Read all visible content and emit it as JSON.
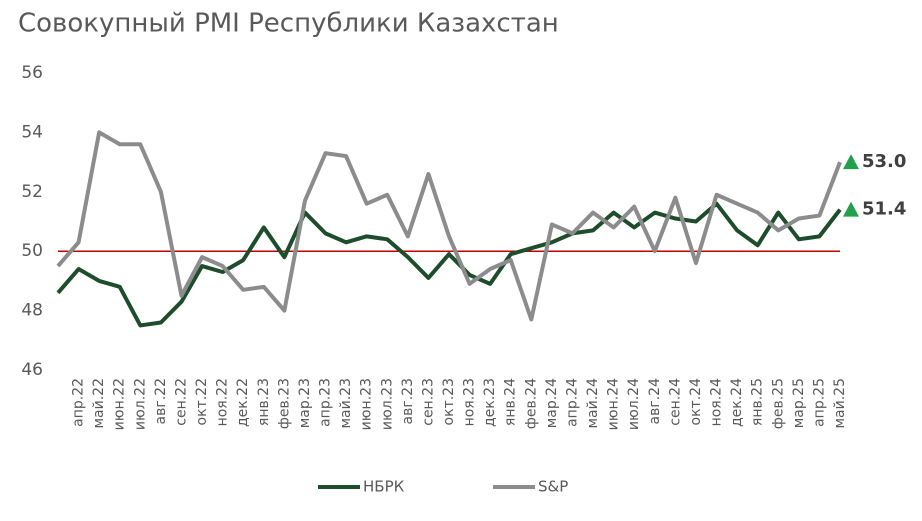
{
  "chart_data": {
    "type": "line",
    "title": "Совокупный PMI Республики Казахстан",
    "categories": [
      null,
      "апр.22",
      "май.22",
      "июн.22",
      "июл.22",
      "авг.22",
      "сен.22",
      "окт.22",
      "ноя.22",
      "дек.22",
      "янв.23",
      "фев.23",
      "мар.23",
      "апр.23",
      "май.23",
      "июн.23",
      "июл.23",
      "авг.23",
      "сен.23",
      "окт.23",
      "ноя.23",
      "дек.23",
      "янв.24",
      "фев.24",
      "мар.24",
      "апр.24",
      "май.24",
      "июн.24",
      "июл.24",
      "авг.24",
      "сен.24",
      "окт.24",
      "ноя.24",
      "дек.24",
      "янв.25",
      "фев.25",
      "мар.25",
      "апр.25",
      "май.25"
    ],
    "series": [
      {
        "name": "НБРК",
        "color": "#1e4d2b",
        "values": [
          48.6,
          49.4,
          49.0,
          48.8,
          47.5,
          47.6,
          48.3,
          49.5,
          49.3,
          49.7,
          50.8,
          49.8,
          51.3,
          50.6,
          50.3,
          50.5,
          50.4,
          49.8,
          49.1,
          49.9,
          49.2,
          48.9,
          49.9,
          50.1,
          50.3,
          50.6,
          50.7,
          51.3,
          50.8,
          51.3,
          51.1,
          51.0,
          51.6,
          50.7,
          50.2,
          51.3,
          50.4,
          50.5,
          51.4
        ],
        "value_labels": [
          null,
          null,
          null,
          null,
          null,
          null,
          null,
          null,
          null,
          null,
          null,
          null,
          null,
          null,
          null,
          null,
          null,
          null,
          null,
          null,
          null,
          null,
          null,
          null,
          null,
          null,
          null,
          null,
          null,
          null,
          null,
          null,
          null,
          null,
          null,
          null,
          null,
          null,
          "51.4"
        ]
      },
      {
        "name": "S&P",
        "color": "#8c8c8c",
        "values": [
          49.5,
          50.3,
          54.0,
          53.6,
          53.6,
          52.0,
          48.5,
          49.8,
          49.5,
          48.7,
          48.8,
          48.0,
          51.7,
          53.3,
          53.2,
          51.6,
          51.9,
          50.5,
          52.6,
          50.5,
          48.9,
          49.4,
          49.7,
          47.7,
          50.9,
          50.6,
          51.3,
          50.8,
          51.5,
          50.0,
          51.8,
          49.6,
          51.9,
          51.6,
          51.3,
          50.7,
          51.1,
          51.2,
          53.0
        ],
        "value_labels": [
          null,
          null,
          null,
          null,
          null,
          null,
          null,
          null,
          null,
          null,
          null,
          null,
          null,
          null,
          null,
          null,
          null,
          null,
          null,
          null,
          null,
          null,
          null,
          null,
          null,
          null,
          null,
          null,
          null,
          null,
          null,
          null,
          null,
          null,
          null,
          null,
          null,
          null,
          "53.0"
        ]
      }
    ],
    "ylim": [
      46,
      56
    ],
    "yticks": [
      46,
      48,
      50,
      52,
      54,
      56
    ],
    "reference_line": {
      "value": 50,
      "color": "#c00000"
    },
    "marker_color": "#22a04b",
    "legend": "bottom"
  }
}
